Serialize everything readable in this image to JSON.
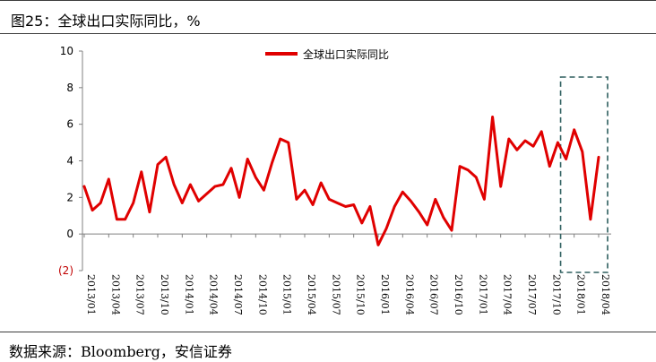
{
  "title": "图25：全球出口实际同比，%",
  "source": "数据来源：Bloomberg，安信证券",
  "colors": {
    "line": "#e00000",
    "negative_tick": "#c00000",
    "highlight_box": "#2e5f5f"
  },
  "chart_data": {
    "type": "line",
    "title": "图25：全球出口实际同比，%",
    "xlabel": "",
    "ylabel": "",
    "ylim": [
      -2,
      10
    ],
    "yticks": [
      "(2)",
      "0",
      "2",
      "4",
      "6",
      "8",
      "10"
    ],
    "ytick_values": [
      -2,
      0,
      2,
      4,
      6,
      8,
      10
    ],
    "xtick_labels": [
      "2013/01",
      "2013/04",
      "2013/07",
      "2013/10",
      "2014/01",
      "2014/04",
      "2014/07",
      "2014/10",
      "2015/01",
      "2015/04",
      "2015/07",
      "2015/10",
      "2016/01",
      "2016/04",
      "2016/07",
      "2016/10",
      "2017/01",
      "2017/04",
      "2017/07",
      "2017/10",
      "2018/01",
      "2018/04"
    ],
    "legend": "top-center",
    "grid": false,
    "highlight": {
      "from": "2017/12",
      "to": "2018/04"
    },
    "series": [
      {
        "name": "全球出口实际同比",
        "x": [
          "2013/01",
          "2013/02",
          "2013/03",
          "2013/04",
          "2013/05",
          "2013/06",
          "2013/07",
          "2013/08",
          "2013/09",
          "2013/10",
          "2013/11",
          "2013/12",
          "2014/01",
          "2014/02",
          "2014/03",
          "2014/04",
          "2014/05",
          "2014/06",
          "2014/07",
          "2014/08",
          "2014/09",
          "2014/10",
          "2014/11",
          "2014/12",
          "2015/01",
          "2015/02",
          "2015/03",
          "2015/04",
          "2015/05",
          "2015/06",
          "2015/07",
          "2015/08",
          "2015/09",
          "2015/10",
          "2015/11",
          "2015/12",
          "2016/01",
          "2016/02",
          "2016/03",
          "2016/04",
          "2016/05",
          "2016/06",
          "2016/07",
          "2016/08",
          "2016/09",
          "2016/10",
          "2016/11",
          "2016/12",
          "2017/01",
          "2017/02",
          "2017/03",
          "2017/04",
          "2017/05",
          "2017/06",
          "2017/07",
          "2017/08",
          "2017/09",
          "2017/10",
          "2017/11",
          "2017/12",
          "2018/01",
          "2018/02",
          "2018/03",
          "2018/04"
        ],
        "values": [
          2.6,
          1.3,
          1.7,
          3.0,
          0.8,
          0.8,
          1.7,
          3.4,
          1.2,
          3.8,
          4.2,
          2.7,
          1.7,
          2.7,
          1.8,
          2.2,
          2.6,
          2.7,
          3.6,
          2.0,
          4.1,
          3.1,
          2.4,
          3.9,
          5.2,
          5.0,
          1.9,
          2.4,
          1.6,
          2.8,
          1.9,
          1.7,
          1.5,
          1.6,
          0.6,
          1.5,
          -0.6,
          0.3,
          1.5,
          2.3,
          1.8,
          1.2,
          0.5,
          1.9,
          0.9,
          0.2,
          3.7,
          3.5,
          3.1,
          1.9,
          6.4,
          2.6,
          5.2,
          4.6,
          5.1,
          4.8,
          5.6,
          3.7,
          5.0,
          4.1,
          5.7,
          4.5,
          0.8,
          4.2
        ]
      }
    ]
  }
}
